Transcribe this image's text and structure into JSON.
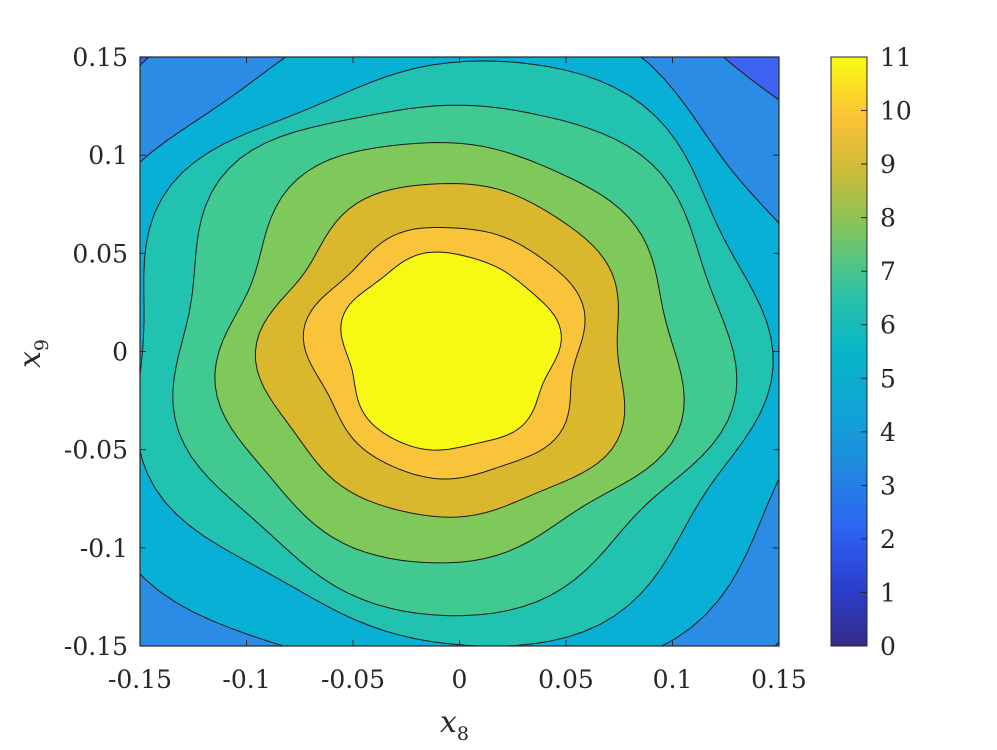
{
  "chart_data": {
    "type": "contour",
    "title": "",
    "xlabel": "x",
    "xlabel_subscript": "8",
    "ylabel": "x",
    "ylabel_subscript": "9",
    "xlim": [
      -0.15,
      0.15
    ],
    "ylim": [
      -0.15,
      0.15
    ],
    "x_ticks": [
      -0.15,
      -0.1,
      -0.05,
      0,
      0.05,
      0.1,
      0.15
    ],
    "x_tick_labels": [
      "-0.15",
      "-0.1",
      "-0.05",
      "0",
      "0.05",
      "0.1",
      "0.15"
    ],
    "y_ticks": [
      -0.15,
      -0.1,
      -0.05,
      0,
      0.05,
      0.1,
      0.15
    ],
    "y_tick_labels": [
      "-0.15",
      "-0.1",
      "-0.05",
      "0",
      "0.05",
      "0.1",
      "0.15"
    ],
    "peak": {
      "x": -0.005,
      "y": 0.0,
      "value": 11
    },
    "contour_levels": [
      3,
      4,
      5,
      6,
      7,
      8,
      9,
      10
    ],
    "contour_radii": [
      0.21,
      0.173,
      0.148,
      0.13,
      0.107,
      0.085,
      0.064,
      0.05
    ],
    "colorbar": {
      "ticks": [
        0,
        1,
        2,
        3,
        4,
        5,
        6,
        7,
        8,
        9,
        10,
        11
      ],
      "tick_labels": [
        "0",
        "1",
        "2",
        "3",
        "4",
        "5",
        "6",
        "7",
        "8",
        "9",
        "10",
        "11"
      ],
      "range": [
        0,
        11
      ],
      "colormap": "parula"
    },
    "band_colors": {
      "2": "#3d63f0",
      "3": "#2b8ce5",
      "4": "#08b0d6",
      "5": "#22c2b0",
      "6": "#40c990",
      "7": "#7ec95a",
      "8": "#d9b82e",
      "9": "#f9c43a",
      "10": "#f8f815"
    },
    "grid": false,
    "legend": "none"
  }
}
